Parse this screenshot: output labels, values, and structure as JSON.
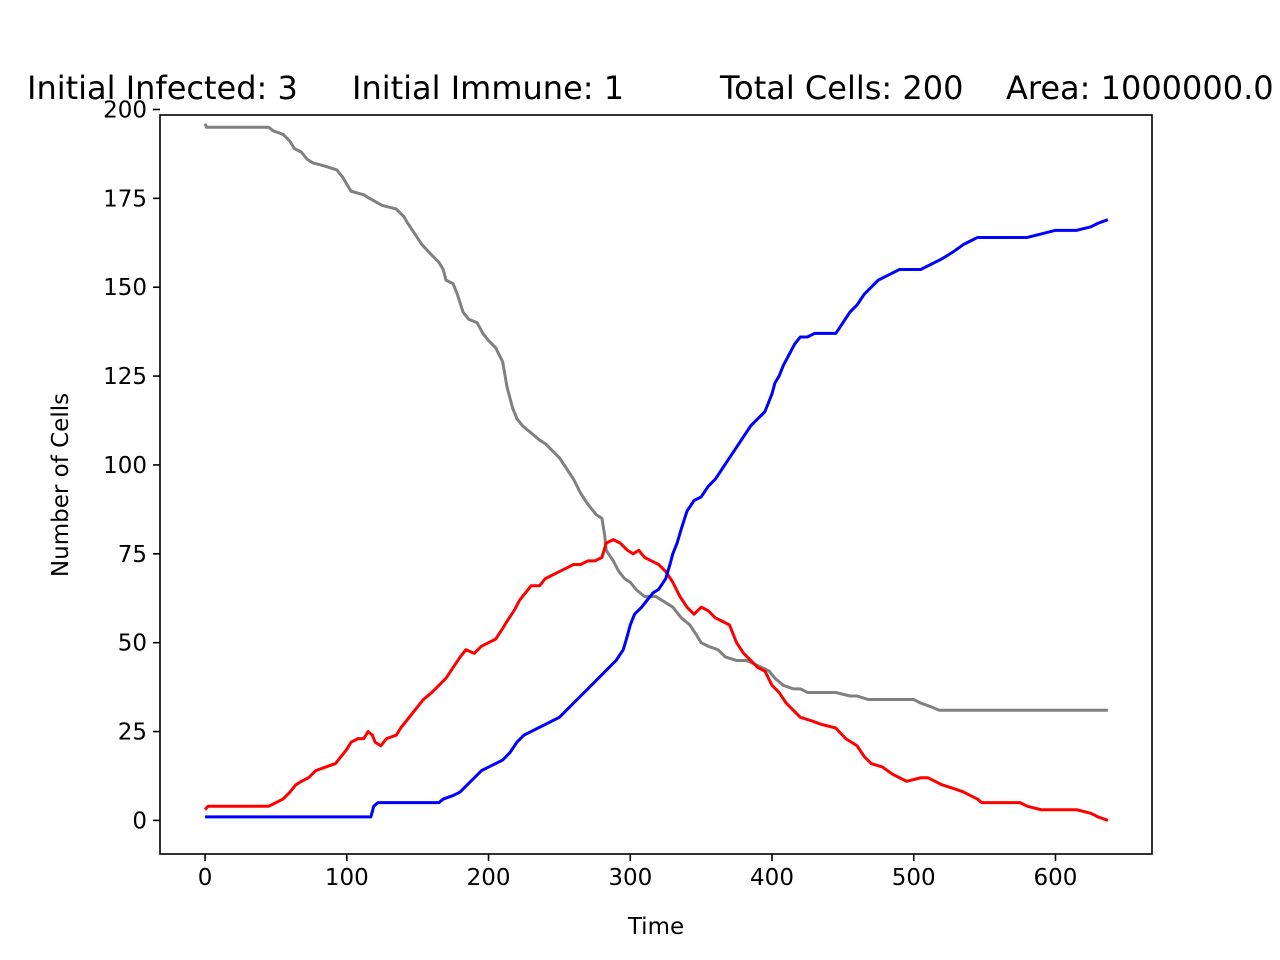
{
  "chart_data": {
    "type": "line",
    "title_items": [
      "Initial Infected: 3",
      "Initial Immune: 1",
      "Total Cells: 200",
      "Area: 1000000.0"
    ],
    "xlabel": "Time",
    "ylabel": "Number of Cells",
    "xlim": [
      -31.8,
      668.1
    ],
    "ylim": [
      -9.45,
      198.45
    ],
    "xticks": [
      0,
      100,
      200,
      300,
      400,
      500,
      600
    ],
    "yticks": [
      0,
      25,
      50,
      75,
      100,
      125,
      150,
      175,
      200
    ],
    "grid": false,
    "legend": "none",
    "series": [
      {
        "color": "#808080",
        "points": [
          [
            0,
            196
          ],
          [
            1,
            195
          ],
          [
            45,
            195
          ],
          [
            48,
            194
          ],
          [
            55,
            193
          ],
          [
            60,
            191
          ],
          [
            63,
            189
          ],
          [
            68,
            188
          ],
          [
            72,
            186
          ],
          [
            76,
            185
          ],
          [
            85,
            184
          ],
          [
            93,
            183
          ],
          [
            97,
            181
          ],
          [
            100,
            179
          ],
          [
            103,
            177
          ],
          [
            112,
            176
          ],
          [
            116,
            175
          ],
          [
            125,
            173
          ],
          [
            135,
            172
          ],
          [
            140,
            170
          ],
          [
            143,
            168
          ],
          [
            148,
            165
          ],
          [
            153,
            162
          ],
          [
            160,
            159
          ],
          [
            165,
            157
          ],
          [
            168,
            155
          ],
          [
            170,
            152
          ],
          [
            175,
            151
          ],
          [
            178,
            148
          ],
          [
            182,
            143
          ],
          [
            186,
            141
          ],
          [
            192,
            140
          ],
          [
            196,
            137
          ],
          [
            200,
            135
          ],
          [
            205,
            133
          ],
          [
            210,
            129
          ],
          [
            213,
            122
          ],
          [
            217,
            116
          ],
          [
            220,
            113
          ],
          [
            224,
            111
          ],
          [
            230,
            109
          ],
          [
            236,
            107
          ],
          [
            240,
            106
          ],
          [
            245,
            104
          ],
          [
            250,
            102
          ],
          [
            255,
            99
          ],
          [
            260,
            96
          ],
          [
            265,
            92
          ],
          [
            270,
            89
          ],
          [
            276,
            86
          ],
          [
            280,
            85
          ],
          [
            282,
            80
          ],
          [
            283,
            76
          ],
          [
            288,
            73
          ],
          [
            292,
            70
          ],
          [
            296,
            68
          ],
          [
            300,
            67
          ],
          [
            304,
            65
          ],
          [
            310,
            63
          ],
          [
            318,
            63
          ],
          [
            326,
            61
          ],
          [
            330,
            60
          ],
          [
            336,
            57
          ],
          [
            342,
            55
          ],
          [
            347,
            52
          ],
          [
            350,
            50
          ],
          [
            355,
            49
          ],
          [
            362,
            48
          ],
          [
            367,
            46
          ],
          [
            375,
            45
          ],
          [
            382,
            45
          ],
          [
            393,
            43
          ],
          [
            398,
            42
          ],
          [
            402,
            40
          ],
          [
            408,
            38
          ],
          [
            415,
            37
          ],
          [
            420,
            37
          ],
          [
            425,
            36
          ],
          [
            445,
            36
          ],
          [
            455,
            35
          ],
          [
            460,
            35
          ],
          [
            468,
            34
          ],
          [
            485,
            34
          ],
          [
            500,
            34
          ],
          [
            505,
            33
          ],
          [
            512,
            32
          ],
          [
            518,
            31
          ],
          [
            540,
            31
          ],
          [
            560,
            31
          ],
          [
            600,
            31
          ],
          [
            620,
            31
          ],
          [
            637,
            31
          ]
        ]
      },
      {
        "color": "#ff0000",
        "points": [
          [
            0,
            3
          ],
          [
            2,
            4
          ],
          [
            45,
            4
          ],
          [
            50,
            5
          ],
          [
            55,
            6
          ],
          [
            60,
            8
          ],
          [
            64,
            10
          ],
          [
            68,
            11
          ],
          [
            73,
            12
          ],
          [
            78,
            14
          ],
          [
            85,
            15
          ],
          [
            92,
            16
          ],
          [
            96,
            18
          ],
          [
            100,
            20
          ],
          [
            103,
            22
          ],
          [
            108,
            23
          ],
          [
            112,
            23
          ],
          [
            115,
            25
          ],
          [
            118,
            24
          ],
          [
            120,
            22
          ],
          [
            124,
            21
          ],
          [
            128,
            23
          ],
          [
            135,
            24
          ],
          [
            138,
            26
          ],
          [
            142,
            28
          ],
          [
            146,
            30
          ],
          [
            150,
            32
          ],
          [
            154,
            34
          ],
          [
            160,
            36
          ],
          [
            165,
            38
          ],
          [
            170,
            40
          ],
          [
            175,
            43
          ],
          [
            180,
            46
          ],
          [
            184,
            48
          ],
          [
            190,
            47
          ],
          [
            195,
            49
          ],
          [
            200,
            50
          ],
          [
            205,
            51
          ],
          [
            210,
            54
          ],
          [
            213,
            56
          ],
          [
            218,
            59
          ],
          [
            222,
            62
          ],
          [
            226,
            64
          ],
          [
            230,
            66
          ],
          [
            236,
            66
          ],
          [
            240,
            68
          ],
          [
            245,
            69
          ],
          [
            250,
            70
          ],
          [
            255,
            71
          ],
          [
            260,
            72
          ],
          [
            265,
            72
          ],
          [
            270,
            73
          ],
          [
            275,
            73
          ],
          [
            280,
            74
          ],
          [
            283,
            78
          ],
          [
            288,
            79
          ],
          [
            293,
            78
          ],
          [
            298,
            76
          ],
          [
            302,
            75
          ],
          [
            306,
            76
          ],
          [
            310,
            74
          ],
          [
            315,
            73
          ],
          [
            320,
            72
          ],
          [
            325,
            70
          ],
          [
            330,
            67
          ],
          [
            335,
            63
          ],
          [
            340,
            60
          ],
          [
            345,
            58
          ],
          [
            350,
            60
          ],
          [
            355,
            59
          ],
          [
            360,
            57
          ],
          [
            365,
            56
          ],
          [
            370,
            55
          ],
          [
            375,
            50
          ],
          [
            380,
            47
          ],
          [
            385,
            45
          ],
          [
            390,
            43
          ],
          [
            395,
            42
          ],
          [
            400,
            38
          ],
          [
            405,
            36
          ],
          [
            410,
            33
          ],
          [
            415,
            31
          ],
          [
            420,
            29
          ],
          [
            428,
            28
          ],
          [
            435,
            27
          ],
          [
            445,
            26
          ],
          [
            452,
            23
          ],
          [
            460,
            21
          ],
          [
            465,
            18
          ],
          [
            470,
            16
          ],
          [
            478,
            15
          ],
          [
            485,
            13
          ],
          [
            490,
            12
          ],
          [
            495,
            11
          ],
          [
            505,
            12
          ],
          [
            510,
            12
          ],
          [
            515,
            11
          ],
          [
            520,
            10
          ],
          [
            528,
            9
          ],
          [
            535,
            8
          ],
          [
            540,
            7
          ],
          [
            545,
            6
          ],
          [
            548,
            5
          ],
          [
            575,
            5
          ],
          [
            580,
            4
          ],
          [
            590,
            3
          ],
          [
            615,
            3
          ],
          [
            625,
            2
          ],
          [
            630,
            1
          ],
          [
            637,
            0
          ]
        ]
      },
      {
        "color": "#0000ff",
        "points": [
          [
            0,
            1
          ],
          [
            117,
            1
          ],
          [
            119,
            4
          ],
          [
            122,
            5
          ],
          [
            165,
            5
          ],
          [
            168,
            6
          ],
          [
            175,
            7
          ],
          [
            180,
            8
          ],
          [
            185,
            10
          ],
          [
            190,
            12
          ],
          [
            195,
            14
          ],
          [
            200,
            15
          ],
          [
            205,
            16
          ],
          [
            210,
            17
          ],
          [
            215,
            19
          ],
          [
            220,
            22
          ],
          [
            225,
            24
          ],
          [
            230,
            25
          ],
          [
            235,
            26
          ],
          [
            240,
            27
          ],
          [
            245,
            28
          ],
          [
            250,
            29
          ],
          [
            255,
            31
          ],
          [
            260,
            33
          ],
          [
            265,
            35
          ],
          [
            270,
            37
          ],
          [
            275,
            39
          ],
          [
            280,
            41
          ],
          [
            285,
            43
          ],
          [
            290,
            45
          ],
          [
            295,
            48
          ],
          [
            298,
            52
          ],
          [
            300,
            55
          ],
          [
            303,
            58
          ],
          [
            308,
            60
          ],
          [
            312,
            62
          ],
          [
            316,
            64
          ],
          [
            320,
            65
          ],
          [
            325,
            68
          ],
          [
            328,
            72
          ],
          [
            330,
            75
          ],
          [
            333,
            78
          ],
          [
            336,
            82
          ],
          [
            340,
            87
          ],
          [
            345,
            90
          ],
          [
            350,
            91
          ],
          [
            355,
            94
          ],
          [
            360,
            96
          ],
          [
            365,
            99
          ],
          [
            370,
            102
          ],
          [
            375,
            105
          ],
          [
            380,
            108
          ],
          [
            385,
            111
          ],
          [
            390,
            113
          ],
          [
            395,
            115
          ],
          [
            400,
            120
          ],
          [
            402,
            123
          ],
          [
            405,
            125
          ],
          [
            408,
            128
          ],
          [
            412,
            131
          ],
          [
            416,
            134
          ],
          [
            420,
            136
          ],
          [
            425,
            136
          ],
          [
            430,
            137
          ],
          [
            445,
            137
          ],
          [
            450,
            140
          ],
          [
            455,
            143
          ],
          [
            460,
            145
          ],
          [
            465,
            148
          ],
          [
            470,
            150
          ],
          [
            475,
            152
          ],
          [
            485,
            154
          ],
          [
            490,
            155
          ],
          [
            505,
            155
          ],
          [
            510,
            156
          ],
          [
            515,
            157
          ],
          [
            520,
            158
          ],
          [
            528,
            160
          ],
          [
            535,
            162
          ],
          [
            540,
            163
          ],
          [
            545,
            164
          ],
          [
            560,
            164
          ],
          [
            580,
            164
          ],
          [
            590,
            165
          ],
          [
            600,
            166
          ],
          [
            615,
            166
          ],
          [
            625,
            167
          ],
          [
            630,
            168
          ],
          [
            637,
            169
          ]
        ]
      }
    ]
  }
}
